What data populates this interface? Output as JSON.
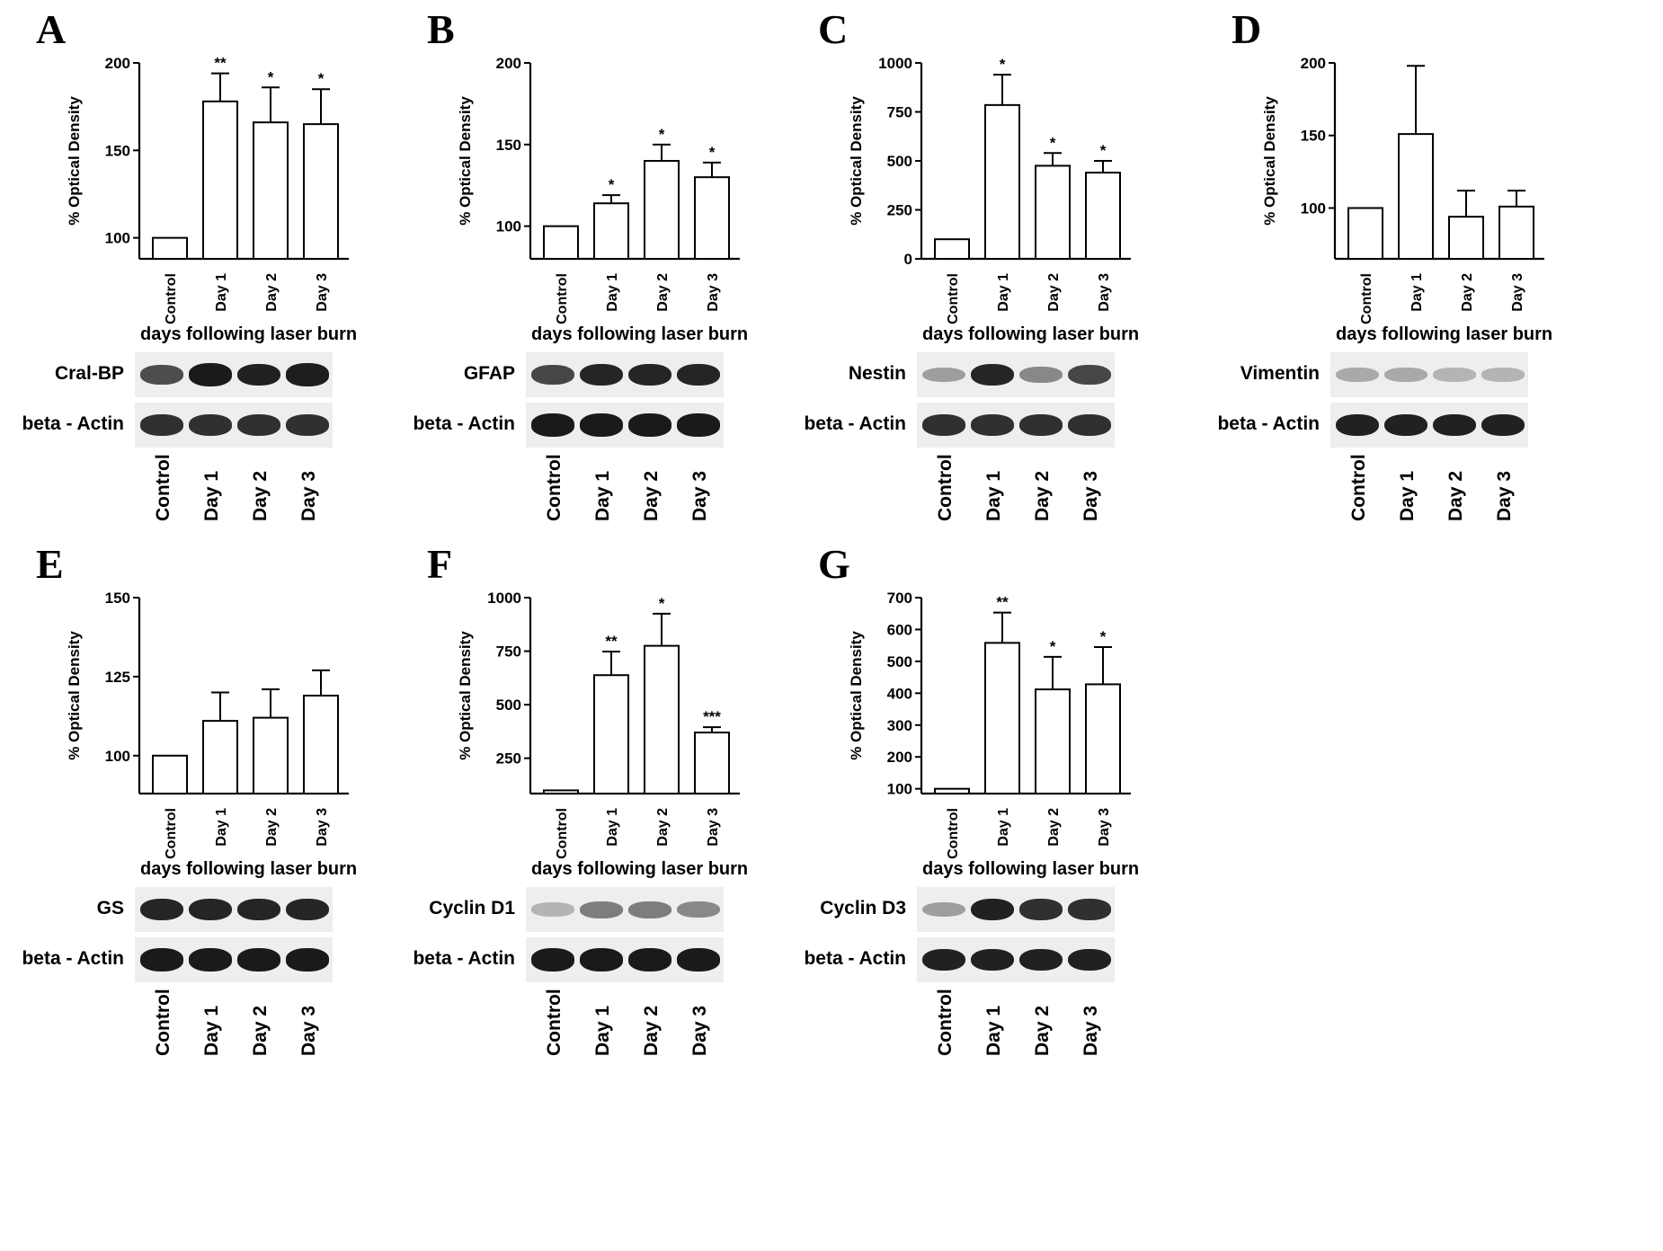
{
  "figure": {
    "x_axis_title": "days following laser burn",
    "ylabel": "% Optical Density",
    "categories": [
      "Control",
      "Day 1",
      "Day 2",
      "Day 3"
    ],
    "loading_control": "beta - Actin"
  },
  "chart_data": [
    {
      "panel": "A",
      "type": "bar",
      "protein": "Cral-BP",
      "categories": [
        "Control",
        "Day 1",
        "Day 2",
        "Day 3"
      ],
      "values": [
        100,
        178,
        166,
        165
      ],
      "errors": [
        0,
        16,
        20,
        20
      ],
      "significance": [
        "",
        "**",
        "*",
        "*"
      ],
      "ylabel": "% Optical Density",
      "xlabel": "days following laser burn",
      "ylim": [
        88,
        200
      ],
      "yticks": [
        100,
        150,
        200
      ],
      "protein_band_intensity": [
        0.72,
        0.95,
        0.92,
        0.93
      ],
      "actin_band_intensity": [
        0.85,
        0.85,
        0.85,
        0.85
      ]
    },
    {
      "panel": "B",
      "type": "bar",
      "protein": "GFAP",
      "categories": [
        "Control",
        "Day 1",
        "Day 2",
        "Day 3"
      ],
      "values": [
        100,
        114,
        140,
        130
      ],
      "errors": [
        0,
        5,
        10,
        9
      ],
      "significance": [
        "",
        "*",
        "*",
        "*"
      ],
      "ylabel": "% Optical Density",
      "xlabel": "days following laser burn",
      "ylim": [
        80,
        200
      ],
      "yticks": [
        100,
        150,
        200
      ],
      "protein_band_intensity": [
        0.75,
        0.9,
        0.9,
        0.9
      ],
      "actin_band_intensity": [
        0.95,
        0.95,
        0.95,
        0.95
      ]
    },
    {
      "panel": "C",
      "type": "bar",
      "protein": "Nestin",
      "categories": [
        "Control",
        "Day 1",
        "Day 2",
        "Day 3"
      ],
      "values": [
        100,
        785,
        475,
        440
      ],
      "errors": [
        0,
        155,
        65,
        60
      ],
      "significance": [
        "",
        "*",
        "*",
        "*"
      ],
      "ylabel": "% Optical Density",
      "xlabel": "days following laser burn",
      "ylim": [
        0,
        1000
      ],
      "yticks": [
        0,
        250,
        500,
        750,
        1000
      ],
      "protein_band_intensity": [
        0.35,
        0.9,
        0.45,
        0.75
      ],
      "actin_band_intensity": [
        0.85,
        0.85,
        0.85,
        0.85
      ]
    },
    {
      "panel": "D",
      "type": "bar",
      "protein": "Vimentin",
      "categories": [
        "Control",
        "Day 1",
        "Day 2",
        "Day 3"
      ],
      "values": [
        100,
        151,
        94,
        101
      ],
      "errors": [
        0,
        47,
        18,
        11
      ],
      "significance": [
        "",
        "",
        "",
        ""
      ],
      "ylabel": "% Optical Density",
      "xlabel": "days following laser burn",
      "ylim": [
        65,
        200
      ],
      "yticks": [
        100,
        150,
        200
      ],
      "protein_band_intensity": [
        0.3,
        0.3,
        0.25,
        0.25
      ],
      "actin_band_intensity": [
        0.92,
        0.92,
        0.92,
        0.92
      ]
    },
    {
      "panel": "E",
      "type": "bar",
      "protein": "GS",
      "categories": [
        "Control",
        "Day 1",
        "Day 2",
        "Day 3"
      ],
      "values": [
        100,
        111,
        112,
        119
      ],
      "errors": [
        0,
        9,
        9,
        8
      ],
      "significance": [
        "",
        "",
        "",
        ""
      ],
      "ylabel": "% Optical Density",
      "xlabel": "days following laser burn",
      "ylim": [
        88,
        150
      ],
      "yticks": [
        100,
        125,
        150
      ],
      "protein_band_intensity": [
        0.9,
        0.9,
        0.9,
        0.9
      ],
      "actin_band_intensity": [
        0.95,
        0.95,
        0.95,
        0.95
      ]
    },
    {
      "panel": "F",
      "type": "bar",
      "protein": "Cyclin D1",
      "categories": [
        "Control",
        "Day 1",
        "Day 2",
        "Day 3"
      ],
      "values": [
        100,
        638,
        775,
        370
      ],
      "errors": [
        0,
        110,
        150,
        25
      ],
      "significance": [
        "",
        "**",
        "*",
        "***"
      ],
      "ylabel": "% Optical Density",
      "xlabel": "days following laser burn",
      "ylim": [
        85,
        1000
      ],
      "yticks": [
        250,
        500,
        750,
        1000
      ],
      "protein_band_intensity": [
        0.25,
        0.5,
        0.5,
        0.45
      ],
      "actin_band_intensity": [
        0.95,
        0.95,
        0.95,
        0.95
      ]
    },
    {
      "panel": "G",
      "type": "bar",
      "protein": "Cyclin D3",
      "categories": [
        "Control",
        "Day 1",
        "Day 2",
        "Day 3"
      ],
      "values": [
        100,
        558,
        412,
        428
      ],
      "errors": [
        0,
        95,
        102,
        117
      ],
      "significance": [
        "",
        "**",
        "*",
        "*"
      ],
      "ylabel": "% Optical Density",
      "xlabel": "days following laser burn",
      "ylim": [
        85,
        700
      ],
      "yticks": [
        100,
        200,
        300,
        400,
        500,
        600,
        700
      ],
      "protein_band_intensity": [
        0.35,
        0.92,
        0.85,
        0.85
      ],
      "actin_band_intensity": [
        0.92,
        0.92,
        0.92,
        0.92
      ]
    }
  ]
}
